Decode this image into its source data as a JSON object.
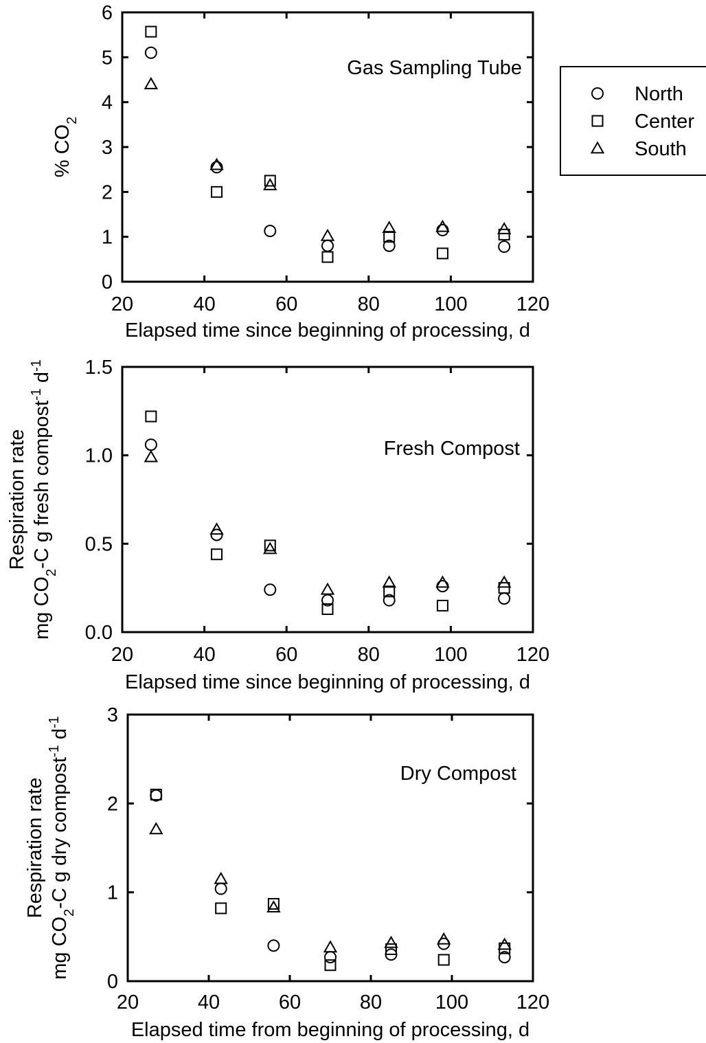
{
  "legend": {
    "items": [
      {
        "label": "North",
        "marker": "circle"
      },
      {
        "label": "Center",
        "marker": "square"
      },
      {
        "label": "South",
        "marker": "triangle"
      }
    ]
  },
  "chart_data": [
    {
      "type": "scatter",
      "title": "Gas Sampling Tube",
      "xlabel": "Elapsed time since beginning of processing, d",
      "ylabel": "% CO2",
      "xlim": [
        20,
        120
      ],
      "ylim": [
        0,
        6
      ],
      "xticks": [
        "20",
        "40",
        "60",
        "80",
        "100",
        "120"
      ],
      "yticks": [
        "0",
        "1",
        "2",
        "3",
        "4",
        "5",
        "6"
      ],
      "grid": false,
      "legend_position": "right",
      "series": [
        {
          "name": "North",
          "marker": "circle",
          "x": [
            27,
            43,
            56,
            70,
            85,
            98,
            113
          ],
          "y": [
            5.1,
            2.55,
            1.13,
            0.8,
            0.8,
            1.15,
            0.78
          ]
        },
        {
          "name": "Center",
          "marker": "square",
          "x": [
            27,
            43,
            56,
            70,
            85,
            98,
            113
          ],
          "y": [
            5.57,
            2.0,
            2.25,
            0.55,
            1.0,
            0.63,
            1.05
          ]
        },
        {
          "name": "South",
          "marker": "triangle",
          "x": [
            27,
            43,
            56,
            70,
            85,
            98,
            113
          ],
          "y": [
            4.4,
            2.6,
            2.15,
            1.02,
            1.2,
            1.22,
            1.17
          ]
        }
      ]
    },
    {
      "type": "scatter",
      "title": "Fresh Compost",
      "xlabel": "Elapsed time since beginning of processing, d",
      "ylabel_line1": "Respiration rate",
      "ylabel_line2": "mg CO2-C g fresh compost-1 d-1",
      "xlim": [
        20,
        120
      ],
      "ylim": [
        0,
        1.5
      ],
      "xticks": [
        "20",
        "40",
        "60",
        "80",
        "100",
        "120"
      ],
      "yticks": [
        "0.0",
        "0.5",
        "1.0",
        "1.5"
      ],
      "grid": false,
      "series": [
        {
          "name": "North",
          "marker": "circle",
          "x": [
            27,
            43,
            56,
            70,
            85,
            98,
            113
          ],
          "y": [
            1.06,
            0.55,
            0.24,
            0.18,
            0.18,
            0.26,
            0.19
          ]
        },
        {
          "name": "Center",
          "marker": "square",
          "x": [
            27,
            43,
            56,
            70,
            85,
            98,
            113
          ],
          "y": [
            1.22,
            0.44,
            0.49,
            0.13,
            0.23,
            0.15,
            0.25
          ]
        },
        {
          "name": "South",
          "marker": "triangle",
          "x": [
            27,
            43,
            56,
            70,
            85,
            98,
            113
          ],
          "y": [
            0.99,
            0.58,
            0.47,
            0.24,
            0.28,
            0.28,
            0.28
          ]
        }
      ]
    },
    {
      "type": "scatter",
      "title": "Dry Compost",
      "xlabel": "Elapsed time from beginning of processing, d",
      "ylabel_line1": "Respiration rate",
      "ylabel_line2": "mg CO2-C g dry compost-1 d-1",
      "xlim": [
        20,
        120
      ],
      "ylim": [
        0,
        3
      ],
      "xticks": [
        "20",
        "40",
        "60",
        "80",
        "100",
        "120"
      ],
      "yticks": [
        "0",
        "1",
        "2",
        "3"
      ],
      "grid": false,
      "series": [
        {
          "name": "North",
          "marker": "circle",
          "x": [
            27,
            43,
            56,
            70,
            85,
            98,
            113
          ],
          "y": [
            2.09,
            1.04,
            0.4,
            0.27,
            0.3,
            0.42,
            0.27
          ]
        },
        {
          "name": "Center",
          "marker": "square",
          "x": [
            27,
            43,
            56,
            70,
            85,
            98,
            113
          ],
          "y": [
            2.1,
            0.82,
            0.87,
            0.18,
            0.36,
            0.24,
            0.37
          ]
        },
        {
          "name": "South",
          "marker": "triangle",
          "x": [
            27,
            43,
            56,
            70,
            85,
            98,
            113
          ],
          "y": [
            1.71,
            1.15,
            0.83,
            0.38,
            0.43,
            0.47,
            0.41
          ]
        }
      ]
    }
  ]
}
